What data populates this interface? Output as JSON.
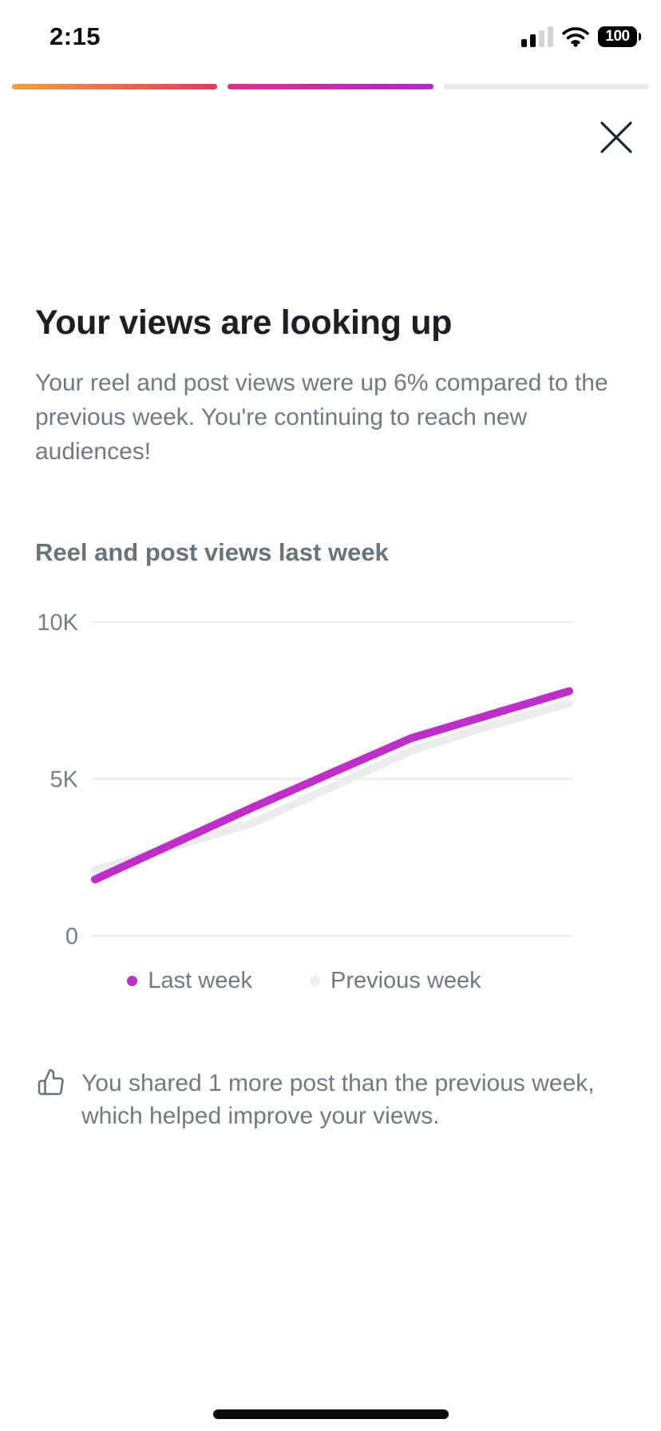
{
  "status_bar": {
    "time": "2:15",
    "battery_percent": "100",
    "signal_bars_filled": 2,
    "signal_bars_total": 4
  },
  "story_progress": {
    "segments": [
      {
        "colors": [
          "#f1a13c",
          "#e8385e"
        ]
      },
      {
        "colors": [
          "#df3090",
          "#af2bc8"
        ]
      },
      {
        "colors": [
          "#e9e9e9"
        ]
      }
    ]
  },
  "card": {
    "title": "Your views are looking up",
    "subtitle": "Your reel and post views were up 6% compared to the previous week. You're continuing to reach new audiences!",
    "section_title": "Reel and post views last week"
  },
  "chart_data": {
    "type": "line",
    "title": "Reel and post views last week",
    "x": [
      1,
      2,
      3,
      4,
      5,
      6,
      7
    ],
    "series": [
      {
        "name": "Last week",
        "color": "#bd2fc6",
        "values": [
          1800,
          2950,
          4100,
          5200,
          6300,
          7050,
          7800
        ]
      },
      {
        "name": "Previous week",
        "color": "#ececec",
        "values": [
          2100,
          2850,
          3600,
          4750,
          5900,
          6700,
          7400
        ]
      }
    ],
    "y_ticks": [
      {
        "label": "0",
        "value": 0
      },
      {
        "label": "5K",
        "value": 5000
      },
      {
        "label": "10K",
        "value": 10000
      }
    ],
    "ylim": [
      0,
      10000
    ],
    "xlabel": "",
    "ylabel": "",
    "grid": "horizontal",
    "legend_position": "bottom"
  },
  "footer_note": {
    "text": "You shared 1 more post than the previous week, which helped improve your views."
  },
  "colors": {
    "accent_magenta": "#bd2fc6",
    "previous_week_gray": "#ececec",
    "title_text": "#1c1f26",
    "body_text": "#6e7a85",
    "axis_text": "#767f89",
    "gridline": "#e9ecef"
  },
  "icons": {
    "close": "x-icon",
    "cellular": "cellular-signal-icon",
    "wifi": "wifi-icon",
    "battery": "battery-icon",
    "footer": "thumbs-up-icon"
  }
}
